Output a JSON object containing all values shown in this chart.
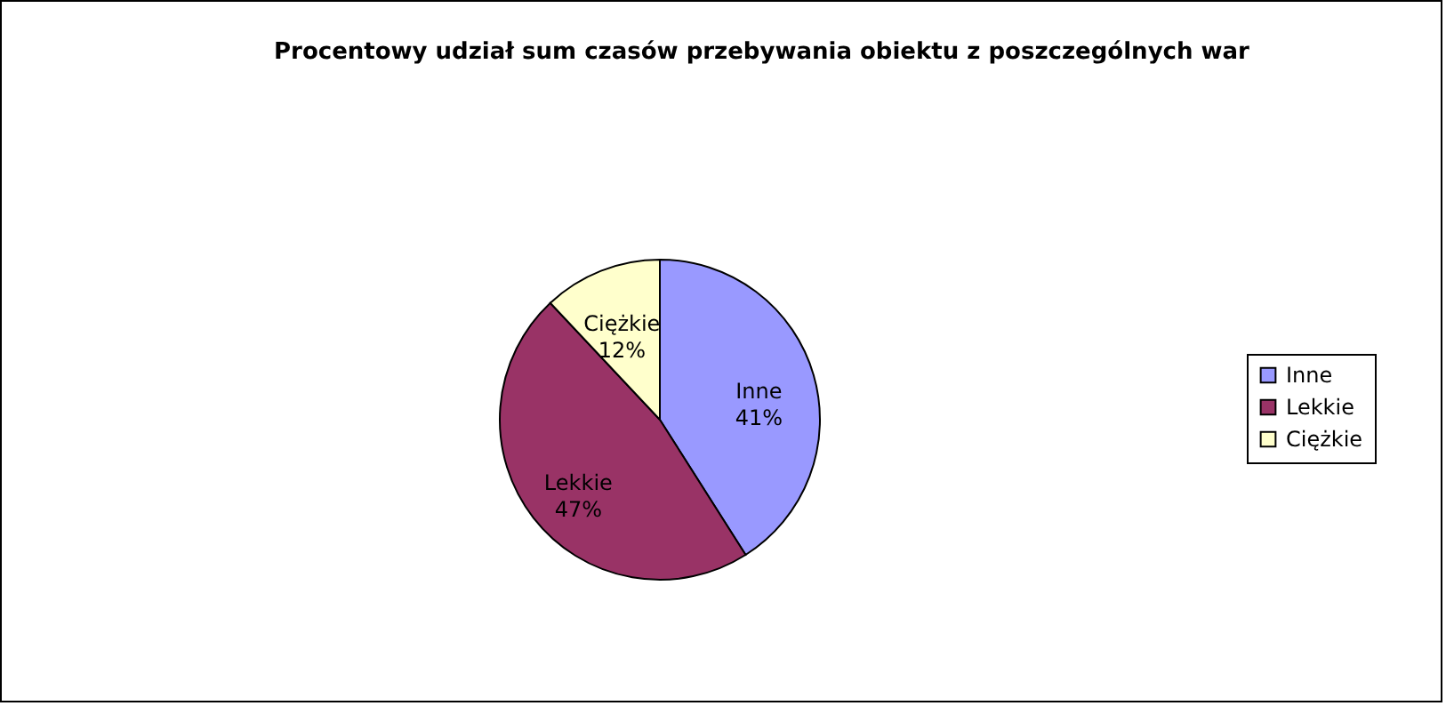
{
  "chart_data": {
    "type": "pie",
    "title": "Procentowy udział sum czasów przebywania obiektu z poszczególnych war",
    "categories": [
      "Inne",
      "Lekkie",
      "Ciężkie"
    ],
    "values": [
      41,
      47,
      12
    ],
    "colors": [
      "#9999ff",
      "#993366",
      "#ffffcc"
    ],
    "value_labels": [
      "41%",
      "47%",
      "12%"
    ],
    "legend": "right"
  }
}
